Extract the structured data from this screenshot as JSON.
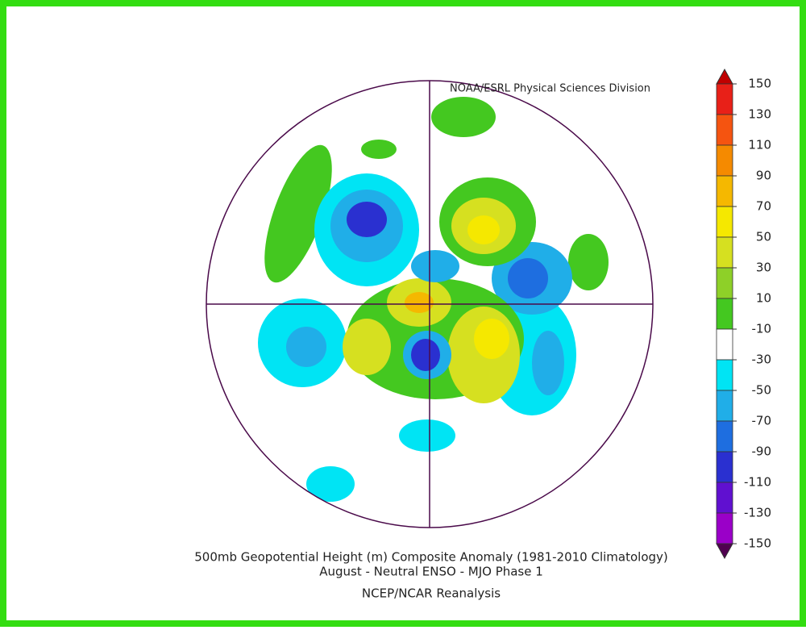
{
  "header": {
    "credit": "NOAA/ESRL Physical Sciences Division"
  },
  "caption": {
    "line1": "500mb Geopotential Height (m) Composite Anomaly (1981-2010 Climatology)",
    "line2": "August - Neutral ENSO - MJO Phase 1",
    "line3": "NCEP/NCAR Reanalysis"
  },
  "colorbar": {
    "ticks": [
      150,
      130,
      110,
      90,
      70,
      50,
      30,
      10,
      -10,
      -30,
      -50,
      -70,
      -90,
      -110,
      -130,
      -150
    ],
    "colors": [
      "#c00000",
      "#e82018",
      "#f55410",
      "#f58a00",
      "#f5b800",
      "#f5e800",
      "#d6e020",
      "#8ed028",
      "#44c820",
      "#ffffff",
      "#00e4f4",
      "#20aee8",
      "#1e6ee0",
      "#2a30d0",
      "#6010d0",
      "#9a00c8",
      "#8a0088",
      "#500050"
    ]
  }
}
